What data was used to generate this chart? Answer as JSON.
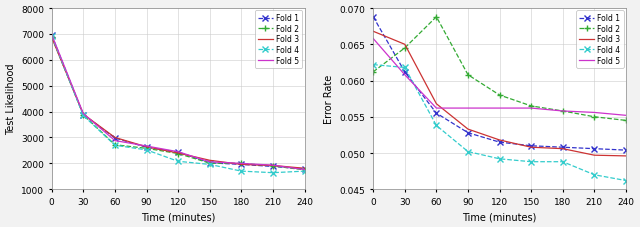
{
  "time_points": [
    0,
    30,
    60,
    90,
    120,
    150,
    180,
    210,
    240
  ],
  "likelihood": {
    "fold1": [
      6950,
      3880,
      2980,
      2620,
      2440,
      2020,
      1960,
      1880,
      1790
    ],
    "fold2": [
      6880,
      3870,
      2720,
      2580,
      2380,
      2010,
      2000,
      1900,
      1750
    ],
    "fold3": [
      6860,
      3900,
      3000,
      2640,
      2400,
      2120,
      1960,
      1920,
      1810
    ],
    "fold4": [
      6920,
      3850,
      2700,
      2520,
      2080,
      1960,
      1700,
      1640,
      1700
    ],
    "fold5": [
      6970,
      3920,
      2880,
      2670,
      2450,
      2060,
      2000,
      1930,
      1760
    ]
  },
  "error_rate": {
    "fold1": [
      0.0688,
      0.0612,
      0.0555,
      0.0528,
      0.0515,
      0.051,
      0.0508,
      0.0506,
      0.0504
    ],
    "fold2": [
      0.0612,
      0.0645,
      0.0688,
      0.0608,
      0.058,
      0.0565,
      0.0558,
      0.055,
      0.0545
    ],
    "fold3": [
      0.0668,
      0.065,
      0.0568,
      0.0533,
      0.0518,
      0.0508,
      0.0506,
      0.0497,
      0.0496
    ],
    "fold4": [
      0.0622,
      0.0618,
      0.0538,
      0.0502,
      0.0492,
      0.0488,
      0.0488,
      0.047,
      0.0462
    ],
    "fold5": [
      0.0658,
      0.0608,
      0.0562,
      0.0562,
      0.0562,
      0.0562,
      0.0558,
      0.0556,
      0.0552
    ]
  },
  "colors": {
    "fold1": "#3333cc",
    "fold2": "#33aa33",
    "fold3": "#cc3333",
    "fold4": "#33cccc",
    "fold5": "#cc33cc"
  },
  "linestyles": {
    "fold1": "--",
    "fold2": "--",
    "fold3": "-",
    "fold4": "--",
    "fold5": "-"
  },
  "markers": {
    "fold1": "x",
    "fold2": "+",
    "fold3": "",
    "fold4": "x",
    "fold5": ""
  },
  "left_ylim": [
    1000,
    8000
  ],
  "left_yticks": [
    1000,
    2000,
    3000,
    4000,
    5000,
    6000,
    7000,
    8000
  ],
  "left_ylabel": "Test Likelihood",
  "right_ylim": [
    0.045,
    0.07
  ],
  "right_yticks": [
    0.045,
    0.05,
    0.055,
    0.06,
    0.065,
    0.07
  ],
  "right_ylabel": "Error Rate",
  "xlabel": "Time (minutes)",
  "xticks": [
    0,
    30,
    60,
    90,
    120,
    150,
    180,
    210,
    240
  ],
  "legend_labels": [
    "Fold 1",
    "Fold 2",
    "Fold 3",
    "Fold 4",
    "Fold 5"
  ],
  "plot_bg": "#ffffff",
  "fig_bg": "#f2f2f2"
}
